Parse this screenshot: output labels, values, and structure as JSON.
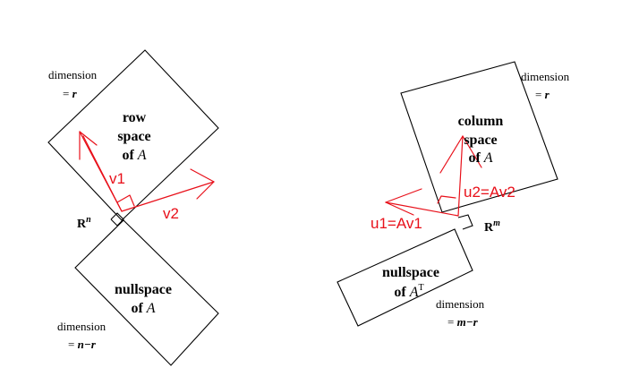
{
  "colors": {
    "ink": "#000000",
    "accent": "#e8101a"
  },
  "left": {
    "dim_top": {
      "label": "dimension",
      "eq": "= ",
      "var": "r"
    },
    "row_space": {
      "line1": "row",
      "line2": "space",
      "line3_of": "of ",
      "var": "A"
    },
    "space_label": {
      "base": "R",
      "exp": "n"
    },
    "nullspace": {
      "line1": "nullspace",
      "line2_of": "of ",
      "var": "A"
    },
    "dim_bottom": {
      "label": "dimension",
      "eq": "= ",
      "var": "n−r"
    },
    "v1": "v1",
    "v2": "v2"
  },
  "right": {
    "dim_top": {
      "label": "dimension",
      "eq": "= ",
      "var": "r"
    },
    "column_space": {
      "line1": "column",
      "line2": "space",
      "line3_of": "of ",
      "var": "A"
    },
    "space_label": {
      "base": "R",
      "exp": "m"
    },
    "left_nullspace": {
      "line1": "nullspace",
      "line2_of": "of ",
      "var": "A",
      "sup": "T"
    },
    "dim_bottom": {
      "label": "dimension",
      "eq": "= ",
      "var": "m−r"
    },
    "u1": "u1=Av1",
    "u2": "u2=Av2"
  }
}
